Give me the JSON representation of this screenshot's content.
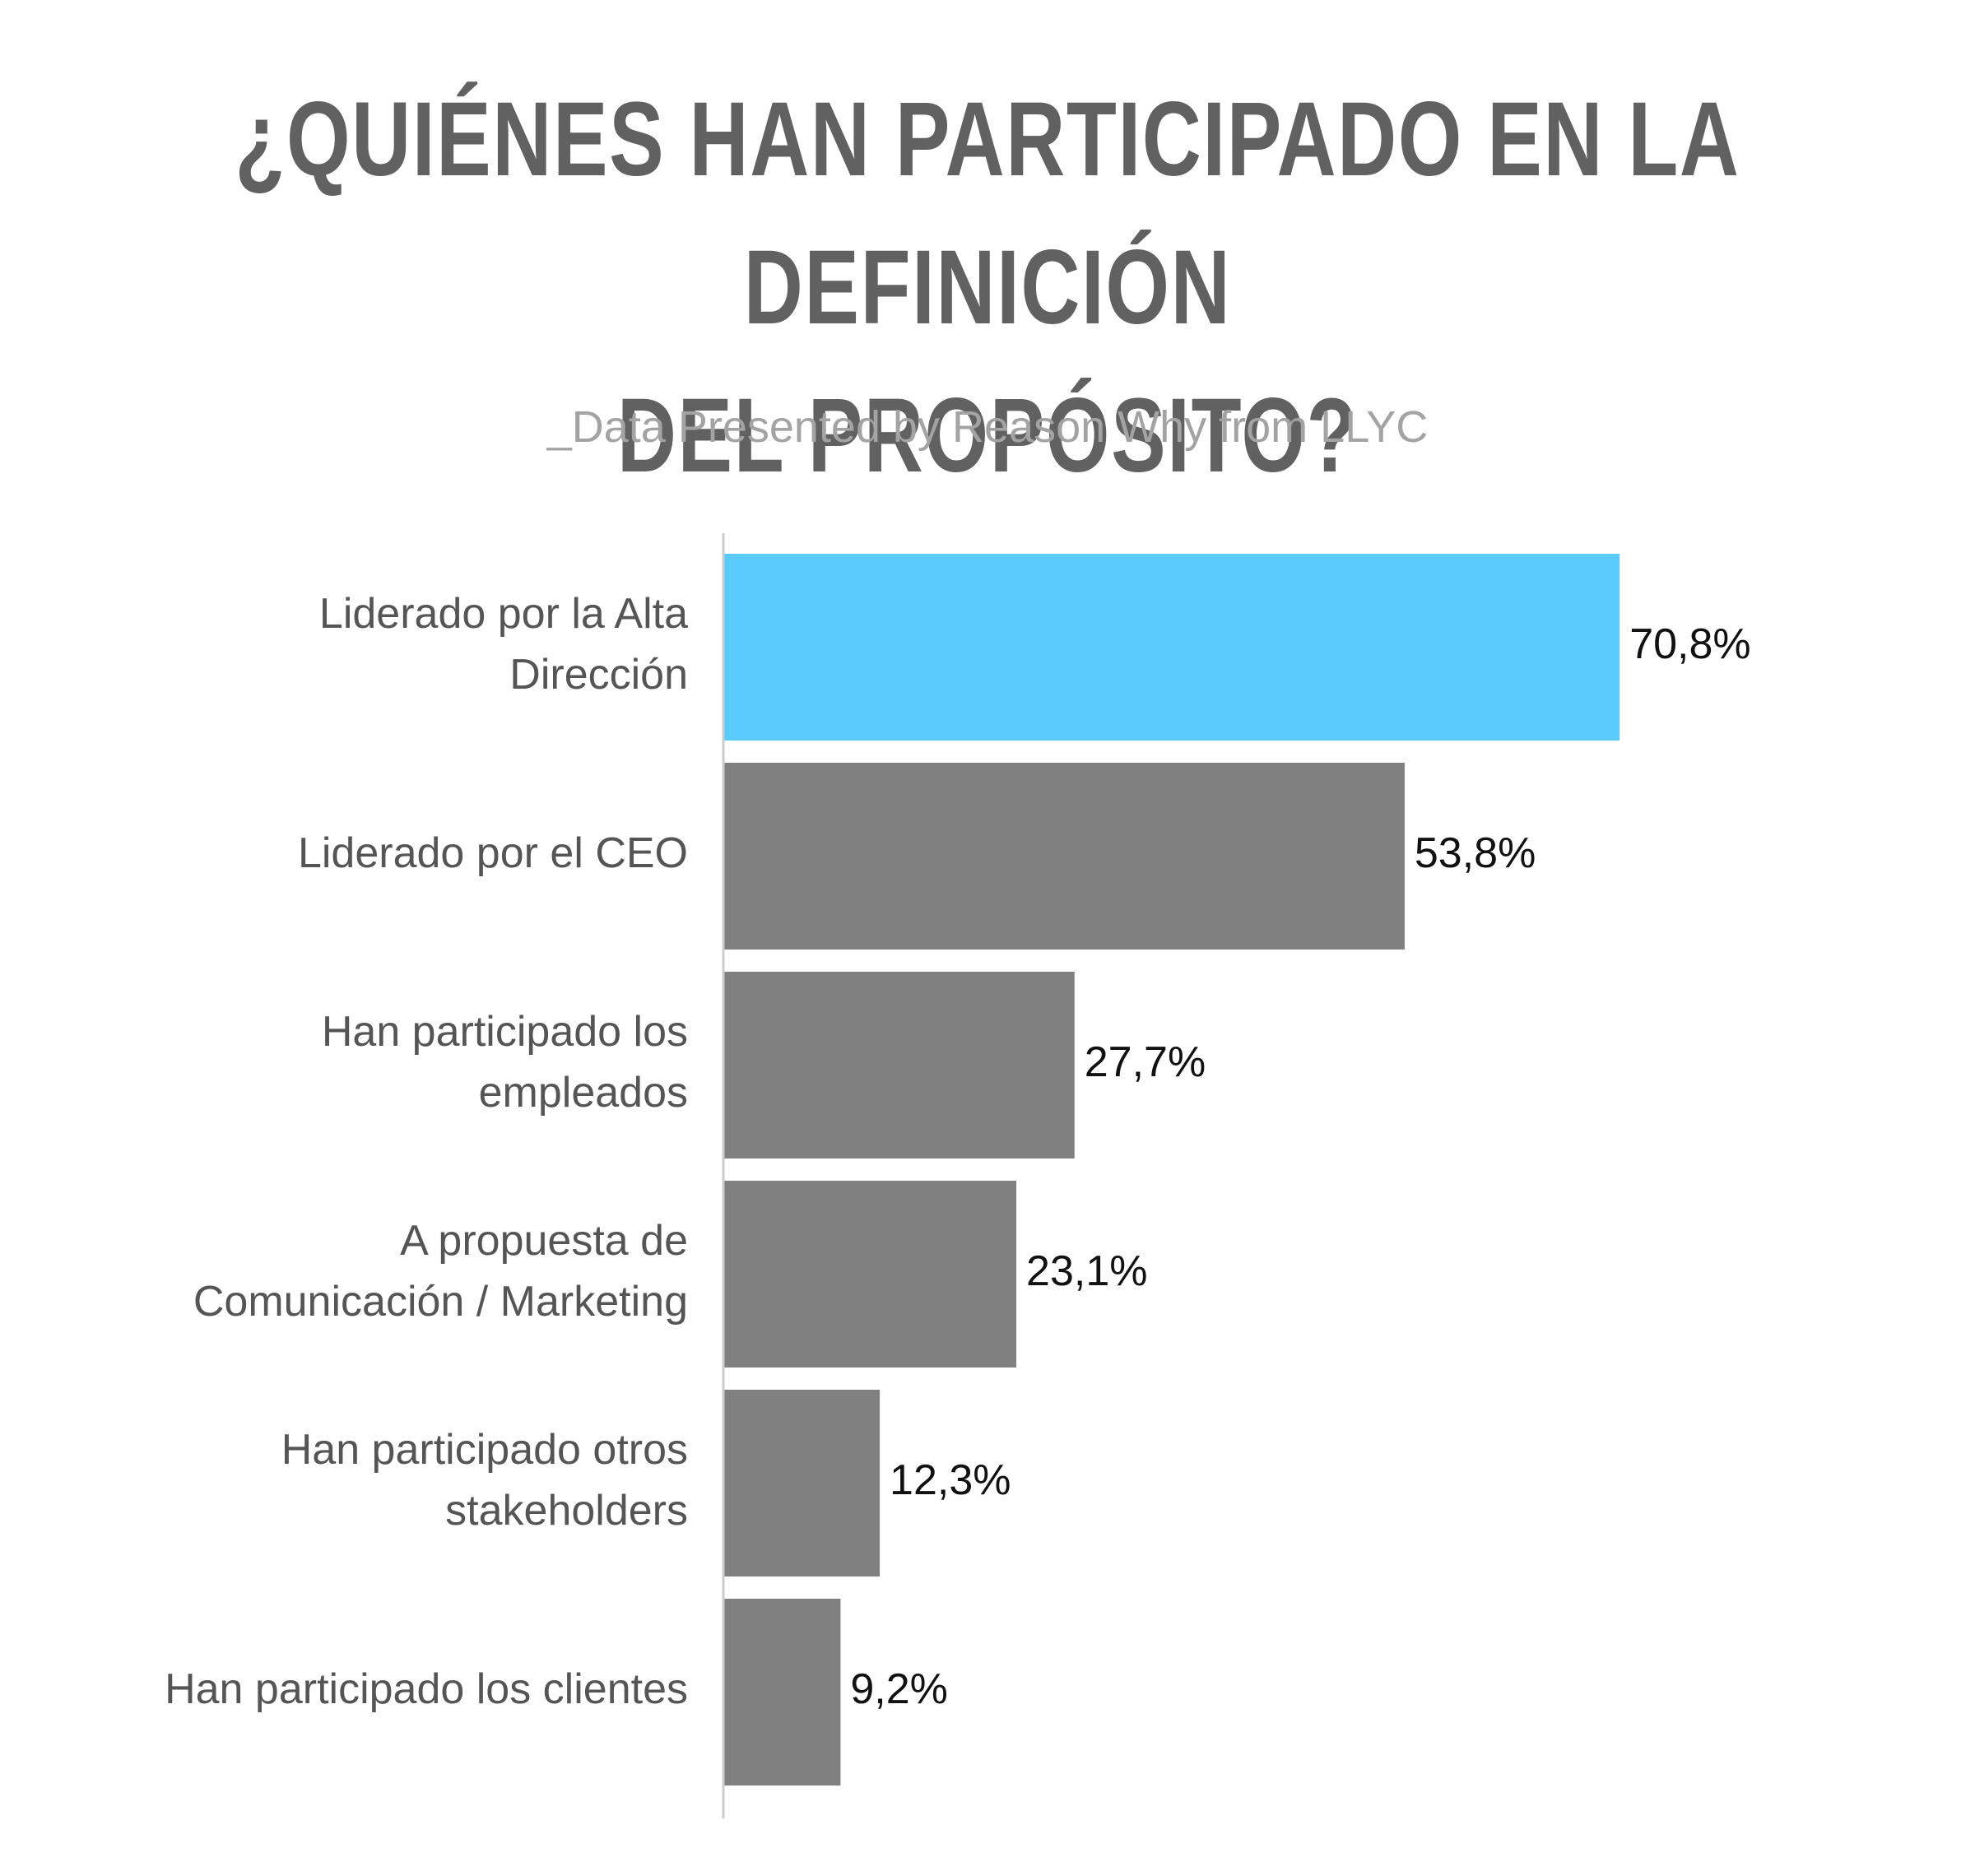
{
  "title": {
    "line1": "¿QUIÉNES HAN PARTICIPADO EN LA DEFINICIÓN",
    "line2": "DEL PROPÓSITO?"
  },
  "subtitle": "_Data Presented by Reason Why from LLYC",
  "colors": {
    "highlight": "#5bcbfc",
    "bar": "#808080",
    "axis": "#cccccc",
    "title": "#616161",
    "subtitle": "#a3a3a3"
  },
  "chart_data": {
    "type": "bar",
    "orientation": "horizontal",
    "categories": [
      [
        "Liderado por la Alta",
        "Dirección"
      ],
      [
        "Liderado por el CEO"
      ],
      [
        "Han participado los",
        "empleados"
      ],
      [
        "A propuesta de",
        "Comunicación / Marketing"
      ],
      [
        "Han participado otros",
        "stakeholders"
      ],
      [
        "Han participado los clientes"
      ]
    ],
    "values": [
      70.8,
      53.8,
      27.7,
      23.1,
      12.3,
      9.2
    ],
    "value_labels": [
      "70,8%",
      "53,8%",
      "27,7%",
      "23,1%",
      "12,3%",
      "9,2%"
    ],
    "highlight_index": 0,
    "xlim": [
      0,
      100
    ],
    "grid": false,
    "legend": "none"
  }
}
